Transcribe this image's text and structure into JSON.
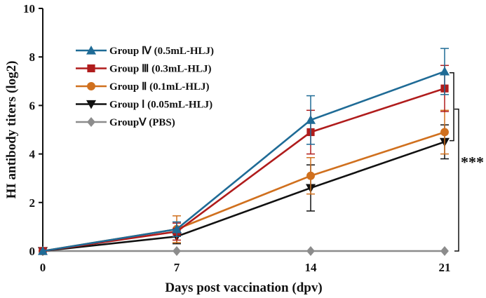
{
  "chart_data": {
    "type": "line",
    "xlabel": "Days post vaccination (dpv)",
    "ylabel": "HI antibody titers (log2)",
    "x": [
      0,
      7,
      14,
      21
    ],
    "xticks": [
      "0",
      "7",
      "14",
      "21"
    ],
    "ylim": [
      0,
      10
    ],
    "yticks": [
      "0",
      "2",
      "4",
      "6",
      "8",
      "10"
    ],
    "grid": false,
    "legend_position": "top-left",
    "series": [
      {
        "name": "Group Ⅳ (0.5mL-HLJ)",
        "color": "#1f6b96",
        "marker": "triangle-up",
        "values": [
          0,
          0.9,
          5.4,
          7.4
        ],
        "errors": [
          0,
          0.3,
          1.0,
          0.95
        ]
      },
      {
        "name": "Group Ⅲ (0.3mL-HLJ)",
        "color": "#b01c1c",
        "marker": "square",
        "values": [
          0,
          0.8,
          4.9,
          6.7
        ],
        "errors": [
          0,
          0.35,
          0.9,
          0.95
        ]
      },
      {
        "name": "Group Ⅱ (0.1mL-HLJ)",
        "color": "#d0701e",
        "marker": "circle",
        "values": [
          0,
          0.9,
          3.1,
          4.9
        ],
        "errors": [
          0,
          0.55,
          0.75,
          0.9
        ]
      },
      {
        "name": "Group Ⅰ (0.05mL-HLJ)",
        "color": "#111111",
        "marker": "triangle-down",
        "values": [
          0,
          0.6,
          2.6,
          4.5
        ],
        "errors": [
          0,
          0.3,
          0.95,
          0.7
        ]
      },
      {
        "name": "GroupⅤ (PBS)",
        "color": "#8c8c8c",
        "marker": "diamond",
        "values": [
          0,
          0,
          0,
          0
        ],
        "errors": [
          0,
          0,
          0,
          0
        ]
      }
    ],
    "annotations": [
      {
        "text": "***",
        "type": "significance-bracket"
      }
    ]
  }
}
